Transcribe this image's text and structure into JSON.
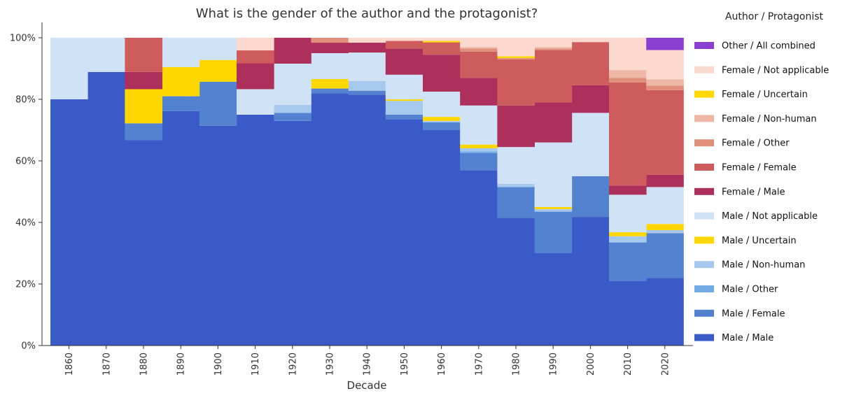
{
  "chart_data": {
    "type": "stacked-area",
    "title": "What is the gender of the author and the protagonist?",
    "xlabel": "Decade",
    "ylabel": "",
    "categories": [
      "1860",
      "1870",
      "1880",
      "1890",
      "1900",
      "1910",
      "1920",
      "1930",
      "1940",
      "1950",
      "1960",
      "1970",
      "1980",
      "1990",
      "2000",
      "2010",
      "2020"
    ],
    "y_ticks": [
      "0%",
      "20%",
      "40%",
      "60%",
      "80%",
      "100%"
    ],
    "ylim": [
      0,
      100
    ],
    "legend_title": "Author / Protagonist",
    "legend_position": "right",
    "series": [
      {
        "name": "Male / Male",
        "color": "#3a5bc7",
        "values": [
          80,
          88.9,
          66.7,
          76.2,
          71.4,
          75,
          73,
          82,
          81.5,
          73.5,
          70,
          57,
          41.5,
          30,
          41.8,
          21,
          22
        ]
      },
      {
        "name": "Male / Female",
        "color": "#5382d1",
        "values": [
          0,
          0,
          5.5,
          4.8,
          14.3,
          0,
          2.6,
          1.5,
          1.3,
          1.5,
          2.5,
          5.5,
          10,
          13.5,
          13.2,
          12.5,
          14.5
        ]
      },
      {
        "name": "Male / Other",
        "color": "#74abe6",
        "values": [
          0,
          0,
          0,
          0,
          0,
          0,
          0,
          0,
          0,
          0,
          0,
          0.6,
          0,
          0,
          0,
          0,
          0
        ]
      },
      {
        "name": "Male / Non-human",
        "color": "#a7c8ed",
        "values": [
          0,
          0,
          0,
          0,
          0,
          0,
          2.6,
          0,
          3.2,
          4.5,
          0.5,
          1,
          1,
          0.8,
          0,
          2,
          1
        ]
      },
      {
        "name": "Male / Uncertain",
        "color": "#ffd700",
        "values": [
          0,
          0,
          11.1,
          9.5,
          7.1,
          0,
          0,
          3.1,
          0,
          0.5,
          1.3,
          1.2,
          0,
          0.7,
          0,
          1.3,
          2
        ]
      },
      {
        "name": "Male / Not applicable",
        "color": "#cfe2f6",
        "values": [
          20,
          11.1,
          0,
          9.5,
          7.2,
          8.3,
          13.4,
          8.4,
          9.2,
          8,
          8.2,
          12.7,
          12,
          21,
          20.6,
          12.2,
          12
        ]
      },
      {
        "name": "Female / Male",
        "color": "#ad2f5c",
        "values": [
          0,
          0,
          5.6,
          0,
          0,
          8.4,
          8.4,
          3.4,
          3.2,
          8.5,
          12,
          9,
          13.5,
          13,
          9,
          3,
          4
        ]
      },
      {
        "name": "Female / Female",
        "color": "#cf5c5c",
        "values": [
          0,
          0,
          11.1,
          0,
          0,
          4.2,
          0,
          0,
          0,
          2.5,
          4,
          8.5,
          15,
          17,
          14,
          33.5,
          27.5
        ]
      },
      {
        "name": "Female / Other",
        "color": "#e0907a",
        "values": [
          0,
          0,
          0,
          0,
          0,
          0,
          0,
          1.6,
          0,
          0,
          0,
          1,
          0.4,
          0.5,
          0,
          1.5,
          1.5
        ]
      },
      {
        "name": "Female / Non-human",
        "color": "#eeb6a4",
        "values": [
          0,
          0,
          0,
          0,
          0,
          0,
          0,
          0,
          0,
          0,
          0,
          0.5,
          0,
          0.5,
          0,
          2.5,
          2
        ]
      },
      {
        "name": "Female / Uncertain",
        "color": "#ffd700",
        "values": [
          0,
          0,
          0,
          0,
          0,
          0,
          0,
          0,
          0,
          0,
          0.5,
          0,
          0.6,
          0,
          0,
          0,
          0
        ]
      },
      {
        "name": "Female / Not applicable",
        "color": "#fbd9cf",
        "values": [
          0,
          0,
          0,
          0,
          0,
          4.1,
          0,
          0,
          1.6,
          1,
          1,
          3,
          6,
          3,
          1.4,
          10.5,
          9.5
        ]
      },
      {
        "name": "Other / All combined",
        "color": "#8b3fd1",
        "values": [
          0,
          0,
          0,
          0,
          0,
          0,
          0,
          0,
          0,
          0,
          0,
          0,
          0,
          0,
          0,
          0,
          4
        ]
      }
    ]
  }
}
